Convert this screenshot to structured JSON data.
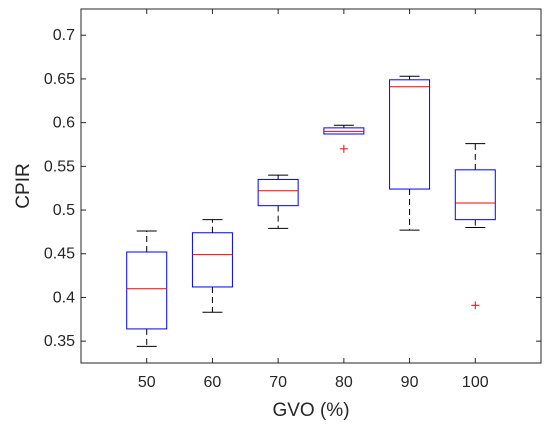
{
  "chart_data": {
    "type": "boxplot",
    "xlabel": "GVO (%)",
    "ylabel": "CPIR",
    "ylim": [
      0.325,
      0.73
    ],
    "yticks": [
      "0.35",
      "0.4",
      "0.45",
      "0.5",
      "0.55",
      "0.6",
      "0.65",
      "0.7"
    ],
    "categories": [
      "50",
      "60",
      "70",
      "80",
      "90",
      "100"
    ],
    "boxes": [
      {
        "category": "50",
        "whisker_low": 0.344,
        "q1": 0.364,
        "median": 0.41,
        "q3": 0.452,
        "whisker_high": 0.476,
        "outliers": []
      },
      {
        "category": "60",
        "whisker_low": 0.383,
        "q1": 0.412,
        "median": 0.449,
        "q3": 0.474,
        "whisker_high": 0.489,
        "outliers": []
      },
      {
        "category": "70",
        "whisker_low": 0.479,
        "q1": 0.505,
        "median": 0.522,
        "q3": 0.535,
        "whisker_high": 0.54,
        "outliers": []
      },
      {
        "category": "80",
        "whisker_low": 0.587,
        "q1": 0.587,
        "median": 0.59,
        "q3": 0.594,
        "whisker_high": 0.597,
        "outliers": [
          0.57
        ]
      },
      {
        "category": "90",
        "whisker_low": 0.477,
        "q1": 0.524,
        "median": 0.641,
        "q3": 0.649,
        "whisker_high": 0.653,
        "outliers": []
      },
      {
        "category": "100",
        "whisker_low": 0.48,
        "q1": 0.489,
        "median": 0.508,
        "q3": 0.546,
        "whisker_high": 0.576,
        "outliers": [
          0.391
        ]
      }
    ],
    "grid": false,
    "colors": {
      "box": "#0000ff",
      "median": "#ff0000",
      "whisker": "#000000",
      "outlier": "#ff0000",
      "axis": "#262626"
    }
  }
}
